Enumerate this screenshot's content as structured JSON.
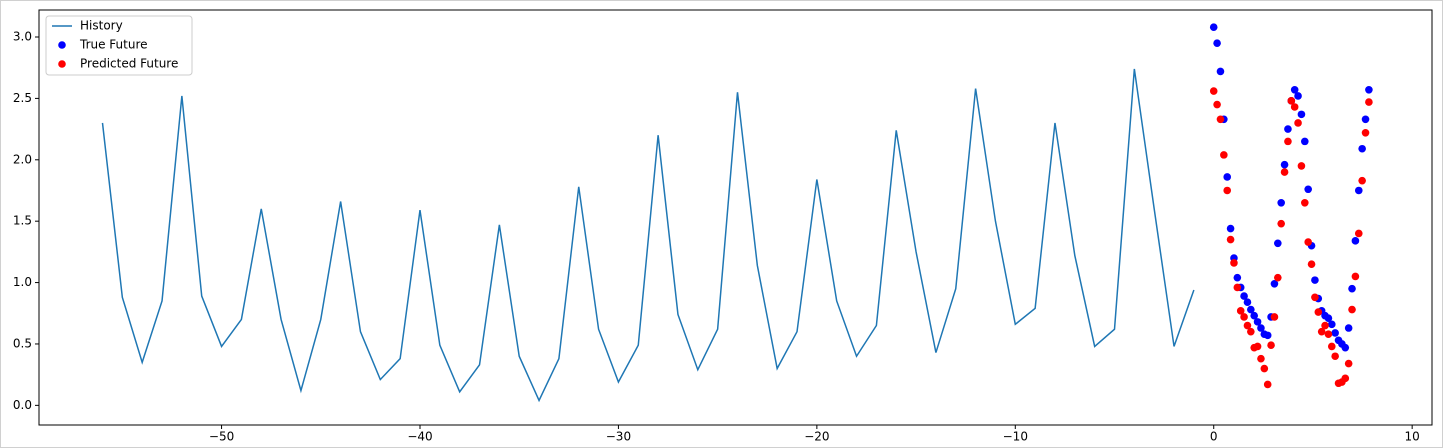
{
  "chart_data": {
    "type": "line",
    "xlim": [
      -59.2,
      11.0
    ],
    "ylim": [
      -0.16,
      3.22
    ],
    "xticks": [
      {
        "value": -50,
        "label": "−50"
      },
      {
        "value": -40,
        "label": "−40"
      },
      {
        "value": -30,
        "label": "−30"
      },
      {
        "value": -20,
        "label": "−20"
      },
      {
        "value": -10,
        "label": "−10"
      },
      0,
      10
    ],
    "yticks": [
      {
        "value": 0,
        "label": "0.0"
      },
      0.5,
      {
        "value": 1,
        "label": "1.0"
      },
      1.5,
      {
        "value": 2,
        "label": "2.0"
      },
      2.5,
      {
        "value": 3,
        "label": "3.0"
      }
    ],
    "grid": false,
    "legend": "upper left",
    "series": [
      {
        "name": "History",
        "kind": "line",
        "color": "#1f77b4",
        "x": [
          -56,
          -55,
          -54,
          -53,
          -52,
          -51,
          -50,
          -49,
          -48,
          -47,
          -46,
          -45,
          -44,
          -43,
          -42,
          -41,
          -40,
          -39,
          -38,
          -37,
          -36,
          -35,
          -34,
          -33,
          -32,
          -31,
          -30,
          -29,
          -28,
          -27,
          -26,
          -25,
          -24,
          -23,
          -22,
          -21,
          -20,
          -19,
          -18,
          -17,
          -16,
          -15,
          -14,
          -13,
          -12,
          -11,
          -10,
          -9,
          -8,
          -7,
          -6,
          -5,
          -4,
          -3,
          -2,
          -1
        ],
        "values": [
          2.3,
          0.88,
          0.35,
          0.85,
          2.52,
          0.89,
          0.48,
          0.7,
          1.6,
          0.7,
          0.12,
          0.7,
          1.66,
          0.6,
          0.21,
          0.38,
          1.59,
          0.49,
          0.11,
          0.33,
          1.47,
          0.4,
          0.04,
          0.38,
          1.78,
          0.62,
          0.19,
          0.49,
          2.2,
          0.74,
          0.29,
          0.62,
          2.55,
          1.14,
          0.3,
          0.6,
          1.84,
          0.85,
          0.4,
          0.65,
          2.24,
          1.25,
          0.43,
          0.95,
          2.58,
          1.5,
          0.66,
          0.79,
          2.3,
          1.22,
          0.48,
          0.62,
          2.74,
          1.6,
          0.48,
          0.94
        ]
      },
      {
        "name": "True Future",
        "kind": "scatter",
        "color": "#0000ff",
        "x": [
          0,
          0.17,
          0.34,
          0.51,
          0.68,
          0.85,
          1.02,
          1.19,
          1.36,
          1.53,
          1.7,
          1.87,
          2.04,
          2.21,
          2.38,
          2.55,
          2.72,
          2.89,
          3.06,
          3.23,
          3.4,
          3.57,
          3.74,
          3.91,
          4.08,
          4.25,
          4.42,
          4.59,
          4.76,
          4.93,
          5.1,
          5.27,
          5.44,
          5.61,
          5.78,
          5.95,
          6.12,
          6.29,
          6.46,
          6.63,
          6.8,
          6.97,
          7.14,
          7.31,
          7.48,
          7.65,
          7.82
        ],
        "values": [
          3.08,
          2.95,
          2.72,
          2.33,
          1.86,
          1.44,
          1.2,
          1.04,
          0.96,
          0.89,
          0.84,
          0.78,
          0.73,
          0.68,
          0.63,
          0.58,
          0.57,
          0.72,
          0.99,
          1.32,
          1.65,
          1.96,
          2.25,
          2.48,
          2.57,
          2.52,
          2.37,
          2.15,
          1.76,
          1.3,
          1.02,
          0.87,
          0.77,
          0.73,
          0.71,
          0.66,
          0.59,
          0.53,
          0.5,
          0.47,
          0.63,
          0.95,
          1.34,
          1.75,
          2.09,
          2.33,
          2.57
        ]
      },
      {
        "name": "Predicted Future",
        "kind": "scatter",
        "color": "#ff0000",
        "x": [
          0,
          0.17,
          0.34,
          0.51,
          0.68,
          0.85,
          1.02,
          1.19,
          1.36,
          1.53,
          1.7,
          1.87,
          2.04,
          2.21,
          2.38,
          2.55,
          2.72,
          2.89,
          3.06,
          3.23,
          3.4,
          3.57,
          3.74,
          3.91,
          4.08,
          4.25,
          4.42,
          4.59,
          4.76,
          4.93,
          5.1,
          5.27,
          5.44,
          5.61,
          5.78,
          5.95,
          6.12,
          6.29,
          6.46,
          6.63,
          6.8,
          6.97,
          7.14,
          7.31,
          7.48,
          7.65,
          7.82
        ],
        "values": [
          2.56,
          2.45,
          2.33,
          2.04,
          1.75,
          1.35,
          1.16,
          0.96,
          0.77,
          0.72,
          0.65,
          0.6,
          0.47,
          0.48,
          0.38,
          0.3,
          0.17,
          0.49,
          0.72,
          1.04,
          1.48,
          1.9,
          2.15,
          2.48,
          2.43,
          2.3,
          1.95,
          1.65,
          1.33,
          1.15,
          0.88,
          0.76,
          0.6,
          0.65,
          0.58,
          0.48,
          0.4,
          0.18,
          0.19,
          0.22,
          0.34,
          0.78,
          1.05,
          1.4,
          1.83,
          2.22,
          2.47
        ]
      }
    ]
  }
}
